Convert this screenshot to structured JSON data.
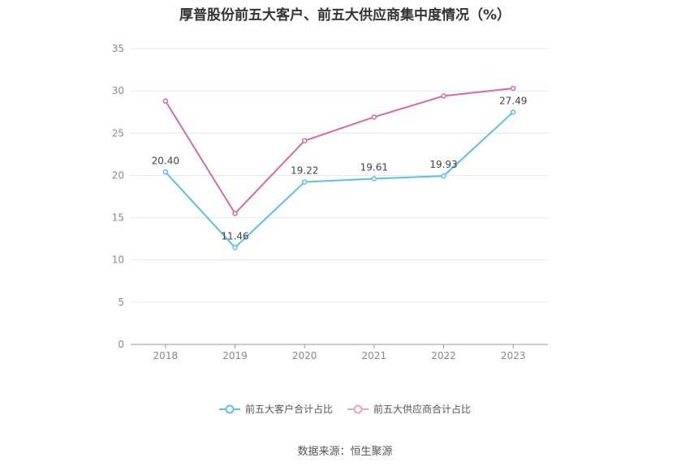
{
  "chart_data": {
    "type": "line",
    "title": "厚普股份前五大客户、前五大供应商集中度情况（%）",
    "categories": [
      "2018",
      "2019",
      "2020",
      "2021",
      "2022",
      "2023"
    ],
    "ylim": [
      0,
      35
    ],
    "yticks": [
      0,
      5,
      10,
      15,
      20,
      25,
      30,
      35
    ],
    "grid": true,
    "legend_position": "bottom",
    "series": [
      {
        "name": "前五大客户合计占比",
        "color": "#5bbfea",
        "values": [
          20.4,
          11.46,
          19.22,
          19.61,
          19.93,
          27.49
        ],
        "labels": [
          "20.40",
          "11.46",
          "19.22",
          "19.61",
          "19.93",
          "27.49"
        ]
      },
      {
        "name": "前五大供应商合计占比",
        "color": "#d36aaa",
        "values": [
          28.8,
          15.5,
          24.1,
          26.9,
          29.4,
          30.3
        ],
        "labels": []
      }
    ]
  },
  "source": "数据来源：恒生聚源"
}
